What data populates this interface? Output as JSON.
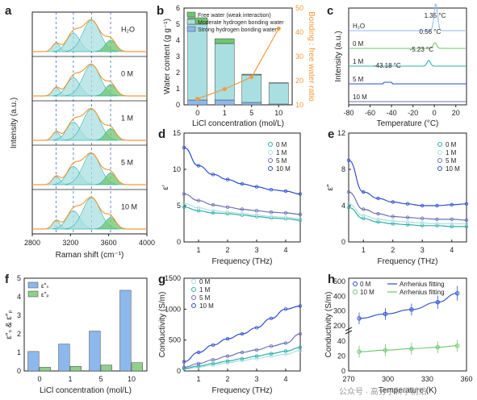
{
  "chart_data": [
    {
      "panel": "a",
      "type": "line",
      "xlabel": "Raman shift (cm⁻¹)",
      "ylabel": "Intensity (a.u.)",
      "xlim": [
        2800,
        4000
      ],
      "xticks": [
        "2800",
        "3200",
        "3600",
        "4000"
      ],
      "series": [
        {
          "name": "H₂O",
          "peak_positions": [
            3050,
            3230,
            3420,
            3620
          ]
        },
        {
          "name": "0 M",
          "peak_positions": [
            3050,
            3230,
            3420,
            3620
          ]
        },
        {
          "name": "1 M",
          "peak_positions": [
            3050,
            3230,
            3420,
            3620
          ]
        },
        {
          "name": "5 M",
          "peak_positions": [
            3050,
            3230,
            3420,
            3620
          ]
        },
        {
          "name": "10 M",
          "peak_positions": [
            3050,
            3230,
            3420,
            3620
          ]
        }
      ]
    },
    {
      "panel": "b",
      "type": "bar",
      "xlabel": "LiCl concentration (mol/L)",
      "ylabel": "Water content (g g⁻¹)",
      "ylabel_right": "Bonding : free water ratio",
      "categories": [
        "0",
        "1",
        "5",
        "10"
      ],
      "ylim": [
        0,
        6
      ],
      "ylim_right": [
        10,
        50
      ],
      "yticks": [
        "0",
        "1",
        "2",
        "3",
        "4",
        "5",
        "6"
      ],
      "yticks_right": [
        "10",
        "20",
        "30",
        "40",
        "50"
      ],
      "series": [
        {
          "name": "Free water (weak interaction)",
          "values": [
            0.4,
            0.3,
            0.05,
            0.02
          ]
        },
        {
          "name": "Moderate hydrogen bonding water",
          "values": [
            4.7,
            3.5,
            1.7,
            1.3
          ]
        },
        {
          "name": "Strong hydrogen bonding water",
          "values": [
            0.3,
            0.3,
            0.15,
            0.05
          ]
        }
      ],
      "ratio": [
        12.5,
        16.5,
        21.5,
        41.5
      ]
    },
    {
      "panel": "c",
      "type": "line",
      "xlabel": "Temperature (°C)",
      "ylabel": "Intensity (a.u.)",
      "xlim": [
        -80,
        30
      ],
      "xticks": [
        "-80",
        "-60",
        "-40",
        "-20",
        "0",
        "20"
      ],
      "series": [
        {
          "name": "H₂O",
          "peak": 1.35
        },
        {
          "name": "0 M",
          "peak": 0.56
        },
        {
          "name": "1 M",
          "peak": -5.23
        },
        {
          "name": "5 M",
          "peak": -43.18
        },
        {
          "name": "10 M",
          "peak": null
        }
      ],
      "annotations": [
        "1.35 °C",
        "0.56 °C",
        "-5.23 °C",
        "-43.18 °C"
      ]
    },
    {
      "panel": "d",
      "type": "line",
      "xlabel": "Frequency (THz)",
      "ylabel": "ε′",
      "xlim": [
        0.5,
        4.5
      ],
      "ylim": [
        0,
        15
      ],
      "xticks": [
        "1",
        "2",
        "3",
        "4"
      ],
      "yticks": [
        "0",
        "5",
        "10",
        "15"
      ],
      "series": [
        {
          "name": "0 M",
          "x": [
            0.5,
            1.0,
            1.5,
            2.0,
            2.5,
            3.0,
            3.5,
            4.0,
            4.5
          ],
          "values": [
            4.8,
            4.3,
            4.0,
            3.9,
            3.7,
            3.5,
            3.3,
            3.2,
            3.0
          ]
        },
        {
          "name": "1 M",
          "x": [
            0.5,
            1.0,
            1.5,
            2.0,
            2.5,
            3.0,
            3.5,
            4.0,
            4.5
          ],
          "values": [
            5.3,
            4.7,
            4.3,
            4.1,
            3.9,
            3.7,
            3.5,
            3.4,
            3.2
          ]
        },
        {
          "name": "5 M",
          "x": [
            0.5,
            1.0,
            1.5,
            2.0,
            2.5,
            3.0,
            3.5,
            4.0,
            4.5
          ],
          "values": [
            6.6,
            5.7,
            5.1,
            4.8,
            4.5,
            4.3,
            4.1,
            4.0,
            3.8
          ]
        },
        {
          "name": "10 M",
          "x": [
            0.5,
            1.0,
            1.5,
            2.0,
            2.5,
            3.0,
            3.5,
            4.0,
            4.5
          ],
          "values": [
            13.0,
            10.5,
            9.3,
            8.6,
            8.0,
            7.6,
            7.2,
            7.0,
            6.6
          ]
        }
      ]
    },
    {
      "panel": "e",
      "type": "line",
      "xlabel": "Frequency (THz)",
      "ylabel": "ε″",
      "xlim": [
        0.5,
        4.5
      ],
      "ylim": [
        0,
        12
      ],
      "xticks": [
        "1",
        "2",
        "3",
        "4"
      ],
      "yticks": [
        "0",
        "4",
        "8",
        "12"
      ],
      "series": [
        {
          "name": "0 M",
          "x": [
            0.5,
            1.0,
            1.5,
            2.0,
            2.5,
            3.0,
            3.5,
            4.0,
            4.5
          ],
          "values": [
            3.8,
            2.6,
            2.2,
            2.0,
            1.9,
            1.8,
            1.8,
            1.7,
            1.7
          ]
        },
        {
          "name": "1 M",
          "x": [
            0.5,
            1.0,
            1.5,
            2.0,
            2.5,
            3.0,
            3.5,
            4.0,
            4.5
          ],
          "values": [
            4.2,
            2.9,
            2.5,
            2.3,
            2.2,
            2.1,
            2.0,
            2.0,
            2.0
          ]
        },
        {
          "name": "5 M",
          "x": [
            0.5,
            1.0,
            1.5,
            2.0,
            2.5,
            3.0,
            3.5,
            4.0,
            4.5
          ],
          "values": [
            5.5,
            3.6,
            3.1,
            2.8,
            2.7,
            2.6,
            2.5,
            2.5,
            2.4
          ]
        },
        {
          "name": "10 M",
          "x": [
            0.5,
            1.0,
            1.5,
            2.0,
            2.5,
            3.0,
            3.5,
            4.0,
            4.5
          ],
          "values": [
            9.0,
            5.5,
            4.8,
            4.4,
            4.2,
            4.0,
            4.0,
            4.1,
            4.2
          ]
        }
      ]
    },
    {
      "panel": "f",
      "type": "bar",
      "xlabel": "LiCl concentration (mol/L)",
      "ylabel": "ε″ₛ & ε″ₚ",
      "categories": [
        "0",
        "1",
        "5",
        "10"
      ],
      "ylim": [
        0,
        5
      ],
      "yticks": [
        "0",
        "1",
        "2",
        "3",
        "4",
        "5"
      ],
      "series": [
        {
          "name": "ε″ₛ",
          "values": [
            1.05,
            1.45,
            2.15,
            4.35
          ]
        },
        {
          "name": "ε″ₚ",
          "values": [
            0.2,
            0.25,
            0.32,
            0.45
          ]
        }
      ]
    },
    {
      "panel": "g",
      "type": "line",
      "xlabel": "Frequency (THz)",
      "ylabel": "Conductivity (S/m)",
      "xlim": [
        0.5,
        4.5
      ],
      "ylim": [
        0,
        1500
      ],
      "xticks": [
        "1",
        "2",
        "3",
        "4"
      ],
      "yticks": [
        "0",
        "500",
        "1000",
        "1500"
      ],
      "series": [
        {
          "name": "0 M",
          "x": [
            0.5,
            1.0,
            1.5,
            2.0,
            2.5,
            3.0,
            3.5,
            4.0,
            4.5
          ],
          "values": [
            30,
            60,
            95,
            130,
            170,
            200,
            240,
            270,
            330
          ]
        },
        {
          "name": "1 M",
          "x": [
            0.5,
            1.0,
            1.5,
            2.0,
            2.5,
            3.0,
            3.5,
            4.0,
            4.5
          ],
          "values": [
            40,
            80,
            120,
            160,
            200,
            240,
            280,
            320,
            380
          ]
        },
        {
          "name": "5 M",
          "x": [
            0.5,
            1.0,
            1.5,
            2.0,
            2.5,
            3.0,
            3.5,
            4.0,
            4.5
          ],
          "values": [
            60,
            120,
            180,
            240,
            300,
            340,
            400,
            450,
            600
          ]
        },
        {
          "name": "10 M",
          "x": [
            0.5,
            1.0,
            1.5,
            2.0,
            2.5,
            3.0,
            3.5,
            4.0,
            4.5
          ],
          "values": [
            150,
            300,
            420,
            520,
            600,
            700,
            850,
            1000,
            1050
          ]
        }
      ]
    },
    {
      "panel": "h",
      "type": "scatter",
      "xlabel": "Temperature (K)",
      "ylabel": "Conductivity (S/m)",
      "xlim": [
        270,
        360
      ],
      "xticks": [
        "270",
        "300",
        "330",
        "360"
      ],
      "yticks_upper": [
        "200",
        "300",
        "400",
        "500"
      ],
      "yticks_lower": [
        "0",
        "20",
        "40"
      ],
      "series": [
        {
          "name": "0 M",
          "x": [
            278,
            298,
            318,
            338,
            353
          ],
          "values": [
            250,
            280,
            310,
            360,
            420
          ],
          "errors": [
            40,
            40,
            40,
            45,
            50
          ]
        },
        {
          "name": "10 M",
          "x": [
            278,
            298,
            318,
            338,
            353
          ],
          "values": [
            26,
            28,
            30,
            32,
            34
          ],
          "errors": [
            8,
            8,
            8,
            8,
            8
          ]
        }
      ],
      "fits": [
        "Arrhenius fitting",
        "Arrhenius fitting"
      ]
    }
  ],
  "labels": {
    "panel_a": "a",
    "panel_b": "b",
    "panel_c": "c",
    "panel_d": "d",
    "panel_e": "e",
    "panel_f": "f",
    "panel_g": "g",
    "panel_h": "h"
  },
  "watermark": "公众号 · 高分子科学前沿",
  "colors": {
    "teal": "#2bb0a8",
    "lightteal": "#a9dfe0",
    "green": "#6ec56e",
    "blue": "#2b4fd0",
    "purple": "#6a6fb6",
    "orange": "#f39a3c",
    "lightblue": "#8db8ec",
    "lightgreen": "#8fd08f"
  }
}
